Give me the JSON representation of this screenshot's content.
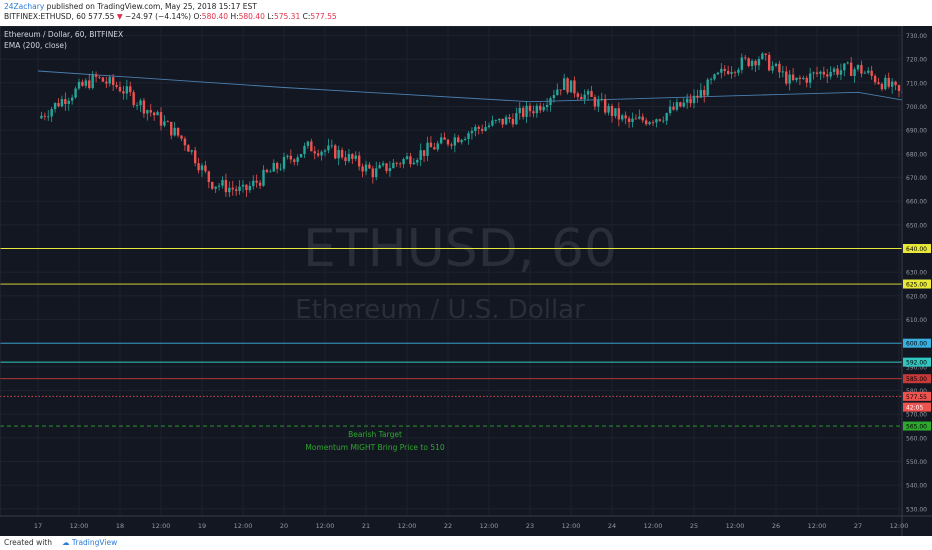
{
  "header": {
    "author": "24Zachary",
    "published": "published on TradingView.com, May 25, 2018 15:17 EST",
    "symbol": "BITFINEX:ETHUSD, 60",
    "last": "577.55",
    "change_arrow": "▼",
    "change": "−24.97 (−4.14%)",
    "ohlc_o_label": "O:",
    "ohlc_o": "580.40",
    "ohlc_h_label": "H:",
    "ohlc_h": "580.40",
    "ohlc_l_label": "L:",
    "ohlc_l": "575.31",
    "ohlc_c_label": "C:",
    "ohlc_c": "577.55"
  },
  "legend": {
    "title": "Ethereum / Dollar, 60, BITFINEX",
    "indicator": "EMA (200, close)"
  },
  "watermark": {
    "symbol": "ETHUSD, 60",
    "name": "Ethereum / U.S. Dollar"
  },
  "annotations": {
    "bearish": "Bearish Target",
    "momentum": "Momentum MIGHT Bring Price to 510"
  },
  "footer": {
    "created": "Created with",
    "brand": "TradingView"
  },
  "colors": {
    "background": "#131722",
    "up": "#26a69a",
    "down": "#ef5350",
    "ema": "#4a7fb0",
    "yellow": "#e8e83a",
    "cyan": "#3ab0e0",
    "teal": "#30c8c0",
    "red": "#c83a3a",
    "green": "#2ea82e",
    "trend": "#7fb0d0"
  },
  "chart_data": {
    "type": "candlestick",
    "title": "Ethereum / Dollar, 60, BITFINEX",
    "ylim": [
      527,
      734
    ],
    "y_ticks": [
      530,
      540,
      550,
      560,
      570,
      580,
      590,
      600,
      610,
      620,
      630,
      640,
      650,
      660,
      670,
      680,
      690,
      700,
      710,
      720,
      730
    ],
    "x_ticks": [
      "17",
      "12:00",
      "18",
      "12:00",
      "19",
      "12:00",
      "20",
      "12:00",
      "21",
      "12:00",
      "22",
      "12:00",
      "23",
      "12:00",
      "24",
      "12:00",
      "25",
      "12:00",
      "26",
      "12:00",
      "27",
      "12:00"
    ],
    "price_path": [
      [
        0,
        695
      ],
      [
        0.3,
        703
      ],
      [
        0.7,
        712
      ],
      [
        1.0,
        708
      ],
      [
        1.4,
        697
      ],
      [
        1.8,
        685
      ],
      [
        2.1,
        668
      ],
      [
        2.5,
        664
      ],
      [
        2.9,
        674
      ],
      [
        3.3,
        683
      ],
      [
        3.7,
        680
      ],
      [
        4.1,
        672
      ],
      [
        4.5,
        678
      ],
      [
        4.9,
        684
      ],
      [
        5.3,
        690
      ],
      [
        5.7,
        694
      ],
      [
        6.1,
        700
      ],
      [
        6.4,
        710
      ],
      [
        6.8,
        702
      ],
      [
        7.2,
        693
      ],
      [
        7.6,
        696
      ],
      [
        8.0,
        703
      ],
      [
        8.4,
        716
      ],
      [
        8.8,
        721
      ],
      [
        9.2,
        710
      ],
      [
        9.6,
        715
      ],
      [
        10.0,
        716
      ],
      [
        10.4,
        708
      ],
      [
        10.8,
        698
      ],
      [
        11.1,
        693
      ],
      [
        11.5,
        690
      ],
      [
        11.9,
        696
      ],
      [
        12.3,
        690
      ],
      [
        12.6,
        682
      ],
      [
        12.9,
        670
      ],
      [
        13.2,
        655
      ],
      [
        13.5,
        636
      ],
      [
        13.8,
        640
      ],
      [
        14.1,
        621
      ],
      [
        14.4,
        617
      ],
      [
        14.7,
        604
      ],
      [
        15.0,
        570
      ],
      [
        15.3,
        592
      ],
      [
        15.6,
        584
      ],
      [
        15.9,
        572
      ],
      [
        16.1,
        601
      ],
      [
        16.3,
        593
      ],
      [
        16.6,
        567
      ],
      [
        16.9,
        569
      ],
      [
        17.2,
        590
      ],
      [
        17.5,
        596
      ],
      [
        17.8,
        594
      ],
      [
        18.1,
        602
      ],
      [
        18.4,
        607
      ],
      [
        18.7,
        598
      ],
      [
        19.0,
        603
      ],
      [
        19.3,
        592
      ],
      [
        19.6,
        578
      ]
    ],
    "ema200": [
      [
        0,
        715
      ],
      [
        3,
        708
      ],
      [
        6,
        702
      ],
      [
        9,
        705
      ],
      [
        10,
        706
      ],
      [
        12,
        694
      ],
      [
        13,
        686
      ],
      [
        14,
        674
      ],
      [
        15,
        660
      ],
      [
        16,
        652
      ],
      [
        17,
        646
      ],
      [
        17.6,
        647
      ]
    ],
    "levels": [
      {
        "value": 640.0,
        "label": "640.00",
        "color": "#e8e83a",
        "style": "solid"
      },
      {
        "value": 625.0,
        "label": "625.00",
        "color": "#e8e83a",
        "style": "solid"
      },
      {
        "value": 600.0,
        "label": "600.00",
        "color": "#3ab0e0",
        "style": "solid"
      },
      {
        "value": 592.0,
        "label": "592.00",
        "color": "#30c8c0",
        "style": "solid"
      },
      {
        "value": 585.0,
        "label": "585.00",
        "color": "#c83a3a",
        "style": "solid"
      },
      {
        "value": 577.55,
        "label": "577.55",
        "color": "#ef5350",
        "style": "dotted"
      },
      {
        "value": 565.0,
        "label": "565.00",
        "color": "#2ea82e",
        "style": "dashed"
      }
    ],
    "extra_price_labels": [
      {
        "value": 573,
        "label": "42:05",
        "color": "#ef5350"
      }
    ],
    "trendline": [
      [
        16.9,
        613
      ],
      [
        19.0,
        600
      ]
    ],
    "grid": true
  }
}
